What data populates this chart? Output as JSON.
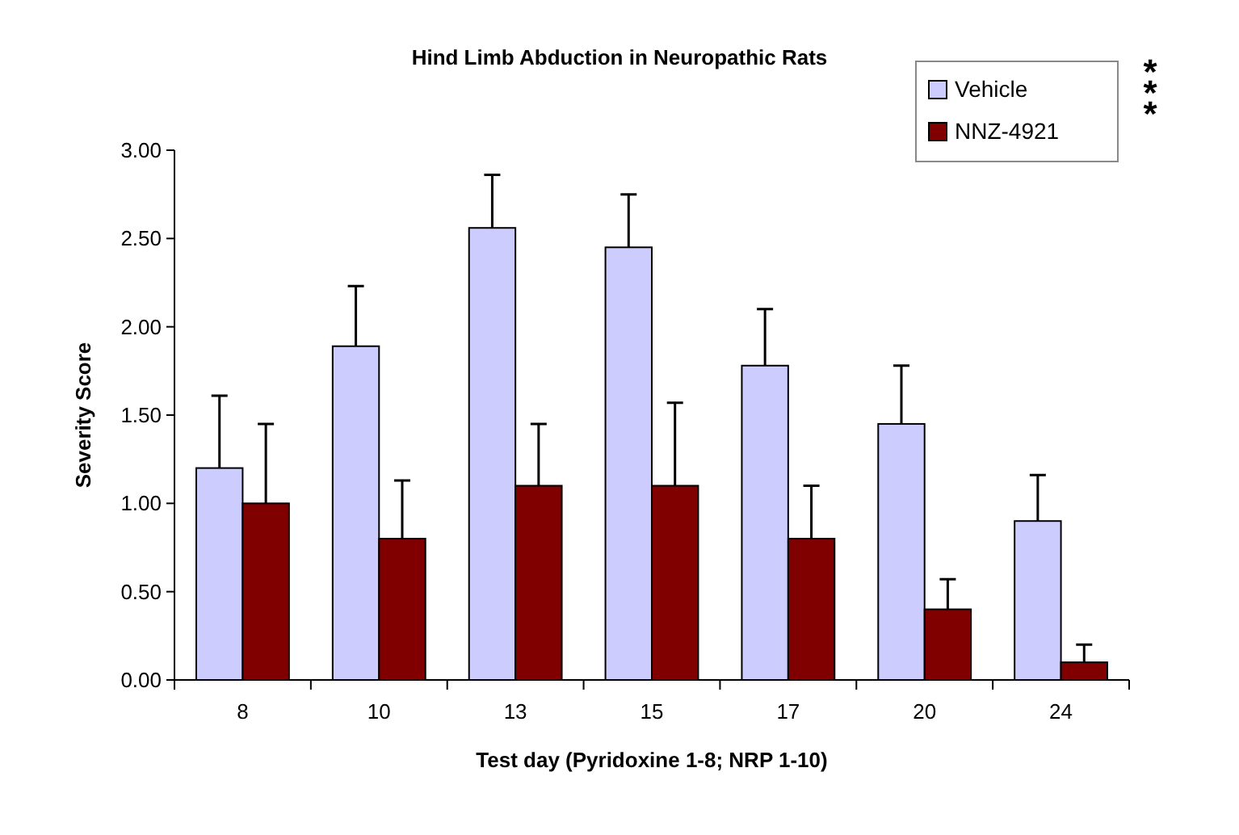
{
  "chart_data": {
    "type": "bar",
    "title": "Hind Limb Abduction in Neuropathic Rats",
    "xlabel": "Test day (Pyridoxine 1-8; NRP 1-10)",
    "ylabel": "Severity Score",
    "categories": [
      "8",
      "10",
      "13",
      "15",
      "17",
      "20",
      "24"
    ],
    "series": [
      {
        "name": "Vehicle",
        "color": "#ccccff",
        "values": [
          1.2,
          1.89,
          2.56,
          2.45,
          1.78,
          1.45,
          0.9
        ],
        "errors": [
          0.41,
          0.34,
          0.3,
          0.3,
          0.32,
          0.33,
          0.26
        ]
      },
      {
        "name": "NNZ-4921",
        "color": "#800000",
        "values": [
          1.0,
          0.8,
          1.1,
          1.1,
          0.8,
          0.4,
          0.1
        ],
        "errors": [
          0.45,
          0.33,
          0.35,
          0.47,
          0.3,
          0.17,
          0.1
        ]
      }
    ],
    "ylim": [
      0,
      3
    ],
    "yticks": [
      {
        "value": 0,
        "label": "0.00"
      },
      {
        "value": 0.5,
        "label": "0.50"
      },
      {
        "value": 1,
        "label": "1.00"
      },
      {
        "value": 1.5,
        "label": "1.50"
      },
      {
        "value": 2,
        "label": "2.00"
      },
      {
        "value": 2.5,
        "label": "2.50"
      },
      {
        "value": 3,
        "label": "3.00"
      }
    ],
    "legend": "top right",
    "annotations": [
      "***"
    ]
  }
}
